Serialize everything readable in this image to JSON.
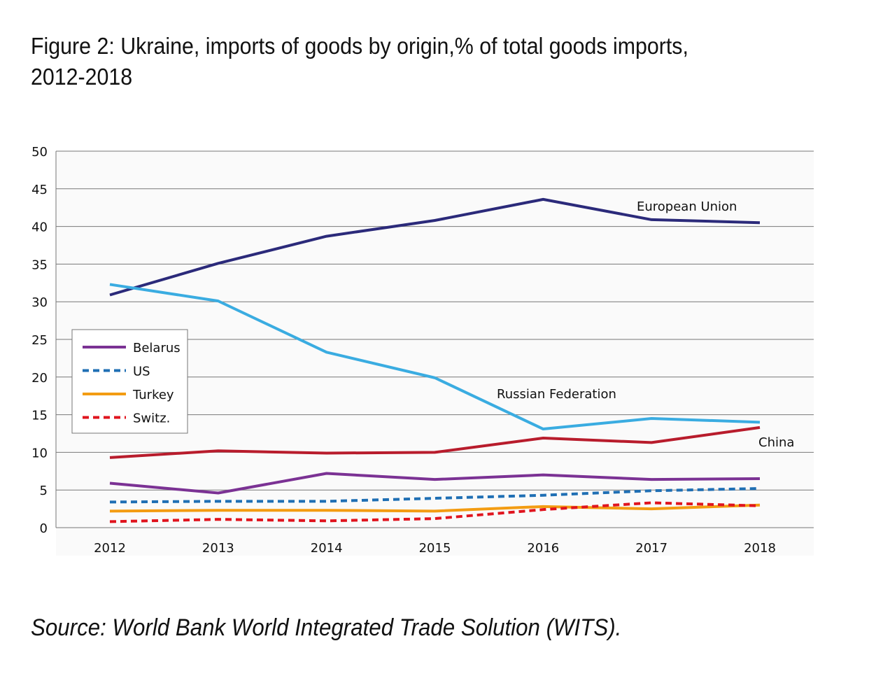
{
  "title_line1": "Figure 2: Ukraine, imports of goods by origin,% of total goods imports,",
  "title_line2": "2012-2018",
  "source": "Source: World Bank World Integrated Trade Solution (WITS).",
  "chart_data": {
    "type": "line",
    "title": "Figure 2: Ukraine, imports of goods by origin,% of total goods imports, 2012-2018",
    "xlabel": "",
    "ylabel": "",
    "x": [
      "2012",
      "2013",
      "2014",
      "2015",
      "2016",
      "2017",
      "2018"
    ],
    "ylim": [
      0,
      50
    ],
    "yticks": [
      0,
      5,
      10,
      15,
      20,
      25,
      30,
      35,
      40,
      45,
      50
    ],
    "grid": true,
    "legend_position": "middle-left",
    "series": [
      {
        "name": "European Union",
        "color": "#2b2a7a",
        "dash": false,
        "label": true,
        "values": [
          30.9,
          35.1,
          38.7,
          40.8,
          43.6,
          40.9,
          40.5
        ]
      },
      {
        "name": "Russian Federation",
        "color": "#3aace1",
        "dash": false,
        "label": true,
        "values": [
          32.3,
          30.1,
          23.3,
          19.9,
          13.1,
          14.5,
          14.0
        ]
      },
      {
        "name": "China",
        "color": "#b81c2c",
        "dash": false,
        "label": true,
        "values": [
          9.3,
          10.2,
          9.9,
          10.0,
          11.9,
          11.3,
          13.3
        ]
      },
      {
        "name": "Belarus",
        "color": "#7b3294",
        "dash": false,
        "legend": true,
        "values": [
          5.9,
          4.6,
          7.2,
          6.4,
          7.0,
          6.4,
          6.5
        ]
      },
      {
        "name": "US",
        "color": "#1f6fb4",
        "dash": true,
        "legend": true,
        "values": [
          3.4,
          3.5,
          3.5,
          3.9,
          4.3,
          4.9,
          5.2
        ]
      },
      {
        "name": "Turkey",
        "color": "#f39c12",
        "dash": false,
        "legend": true,
        "values": [
          2.2,
          2.3,
          2.3,
          2.2,
          2.8,
          2.5,
          3.0
        ]
      },
      {
        "name": "Switz.",
        "color": "#e0141e",
        "dash": true,
        "legend": true,
        "values": [
          0.8,
          1.1,
          0.9,
          1.2,
          2.4,
          3.3,
          2.9
        ]
      }
    ]
  }
}
